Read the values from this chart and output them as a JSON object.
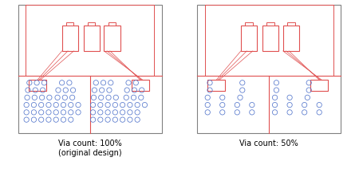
{
  "bg_color": "#ffffff",
  "border_color": "#808080",
  "red_color": "#e05050",
  "blue_color": "#5577cc",
  "label_left": "Via count: 100%\n(original design)",
  "label_right": "Via count: 50%",
  "label_fontsize": 7.0
}
